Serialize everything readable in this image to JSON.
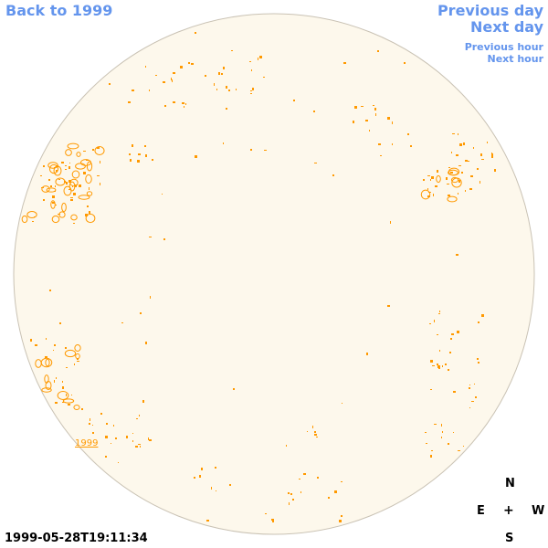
{
  "nav": {
    "back_label": "Back to 1999",
    "previous_day": "Previous day",
    "next_day": "Next day",
    "previous_hour": "Previous hour",
    "next_hour": "Next hour"
  },
  "disk": {
    "year_label": "1999",
    "fill_color": "#fdf8ec",
    "rim_color": "#c9c2b4",
    "contour_color": "#ff9900"
  },
  "compass": {
    "north": "N",
    "east": "E",
    "west": "W",
    "south": "S",
    "center": "+"
  },
  "timestamp": "1999-05-28T19:11:34",
  "colors": {
    "link": "#6495ed",
    "text": "#000000"
  }
}
